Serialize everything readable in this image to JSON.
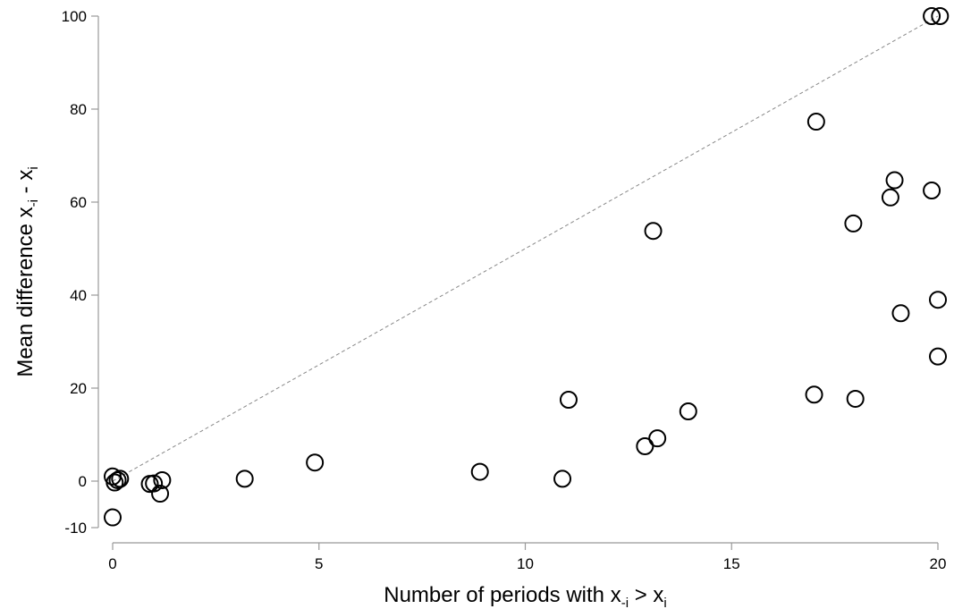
{
  "chart_data": {
    "type": "scatter",
    "xlim": [
      0,
      20
    ],
    "ylim": [
      -10,
      100
    ],
    "x_ticks": [
      "0",
      "5",
      "10",
      "15",
      "20"
    ],
    "y_ticks": [
      "-10",
      "0",
      "20",
      "40",
      "60",
      "80",
      "100"
    ],
    "xlabel": {
      "base": "Number of periods with x",
      "sub1": "-i",
      "mid": " > x",
      "sub2": "i"
    },
    "ylabel": {
      "base": "Mean difference x",
      "sub1": "-i",
      "mid": " - x",
      "sub2": "i"
    },
    "reference_line": {
      "style": "dashed",
      "from": [
        0,
        0
      ],
      "to": [
        20,
        100
      ]
    },
    "grid": false,
    "points": [
      {
        "x": 0.0,
        "y": 1.0
      },
      {
        "x": 0.05,
        "y": -0.3
      },
      {
        "x": 0.12,
        "y": 0.2
      },
      {
        "x": 0.18,
        "y": 0.5
      },
      {
        "x": 0.0,
        "y": -7.8
      },
      {
        "x": 0.9,
        "y": -0.6
      },
      {
        "x": 1.0,
        "y": -0.5
      },
      {
        "x": 1.2,
        "y": 0.2
      },
      {
        "x": 1.15,
        "y": -2.7
      },
      {
        "x": 3.2,
        "y": 0.5
      },
      {
        "x": 4.9,
        "y": 4.0
      },
      {
        "x": 8.9,
        "y": 2.0
      },
      {
        "x": 10.9,
        "y": 0.5
      },
      {
        "x": 11.05,
        "y": 17.5
      },
      {
        "x": 12.9,
        "y": 7.5
      },
      {
        "x": 13.2,
        "y": 9.2
      },
      {
        "x": 13.1,
        "y": 53.8
      },
      {
        "x": 13.95,
        "y": 15.0
      },
      {
        "x": 17.0,
        "y": 18.6
      },
      {
        "x": 17.05,
        "y": 77.3
      },
      {
        "x": 18.0,
        "y": 17.7
      },
      {
        "x": 17.95,
        "y": 55.4
      },
      {
        "x": 18.85,
        "y": 61.0
      },
      {
        "x": 18.95,
        "y": 64.7
      },
      {
        "x": 19.1,
        "y": 36.1
      },
      {
        "x": 19.85,
        "y": 62.5
      },
      {
        "x": 20.0,
        "y": 39.0
      },
      {
        "x": 20.0,
        "y": 26.8
      },
      {
        "x": 19.85,
        "y": 100.0
      },
      {
        "x": 20.05,
        "y": 100.0
      }
    ]
  }
}
